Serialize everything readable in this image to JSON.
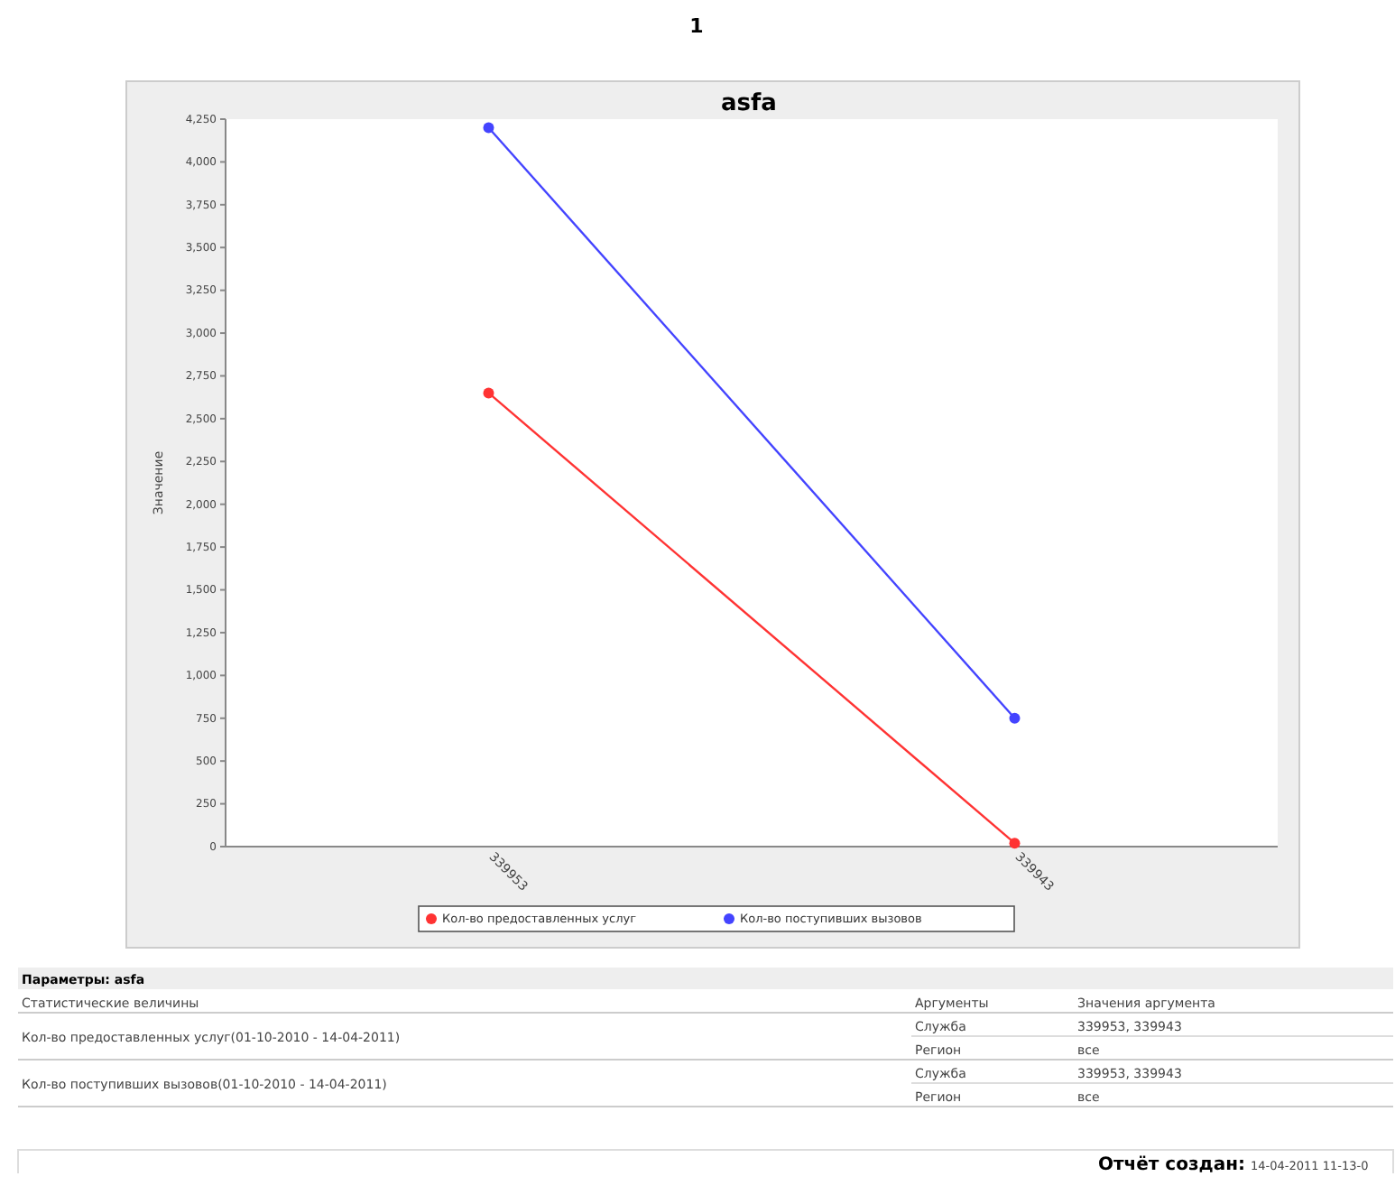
{
  "chart_data": {
    "type": "line",
    "title": "asfa",
    "ylabel": "Значение",
    "categories": [
      "339953",
      "339943"
    ],
    "series": [
      {
        "name": "Кол-во предоставленных услуг",
        "color": "#ff3333",
        "values": [
          2650,
          20
        ]
      },
      {
        "name": "Кол-во поступивших вызовов",
        "color": "#4444ff",
        "values": [
          4200,
          750
        ]
      }
    ],
    "ylim": [
      0,
      4250
    ],
    "yticks": [
      {
        "value": 0,
        "label": "0"
      },
      {
        "value": 250,
        "label": "250"
      },
      {
        "value": 500,
        "label": "500"
      },
      {
        "value": 750,
        "label": "750"
      },
      {
        "value": 1000,
        "label": "1,000"
      },
      {
        "value": 1250,
        "label": "1,250"
      },
      {
        "value": 1500,
        "label": "1,500"
      },
      {
        "value": 1750,
        "label": "1,750"
      },
      {
        "value": 2000,
        "label": "2,000"
      },
      {
        "value": 2250,
        "label": "2,250"
      },
      {
        "value": 2500,
        "label": "2,500"
      },
      {
        "value": 2750,
        "label": "2,750"
      },
      {
        "value": 3000,
        "label": "3,000"
      },
      {
        "value": 3250,
        "label": "3,250"
      },
      {
        "value": 3500,
        "label": "3,500"
      },
      {
        "value": 3750,
        "label": "3,750"
      },
      {
        "value": 4000,
        "label": "4,000"
      },
      {
        "value": 4250,
        "label": "4,250"
      }
    ],
    "legend": "bottom",
    "marker": "circle",
    "line_style": "solid",
    "annotations": [
      "1",
      "Параметры: asfa",
      "Статистические величины",
      "Аргументы",
      "Значения аргумента",
      "Кол-во предоставленных услуг(01-10-2010 - 14-04-2011)",
      "Служба",
      "339953, 339943",
      "Регион",
      "все",
      "Кол-во поступивших вызовов(01-10-2010 - 14-04-2011)",
      "Служба",
      "339953, 339943",
      "Регион",
      "все",
      "Отчёт создан:",
      "14-04-2011 11-13-0"
    ]
  }
}
